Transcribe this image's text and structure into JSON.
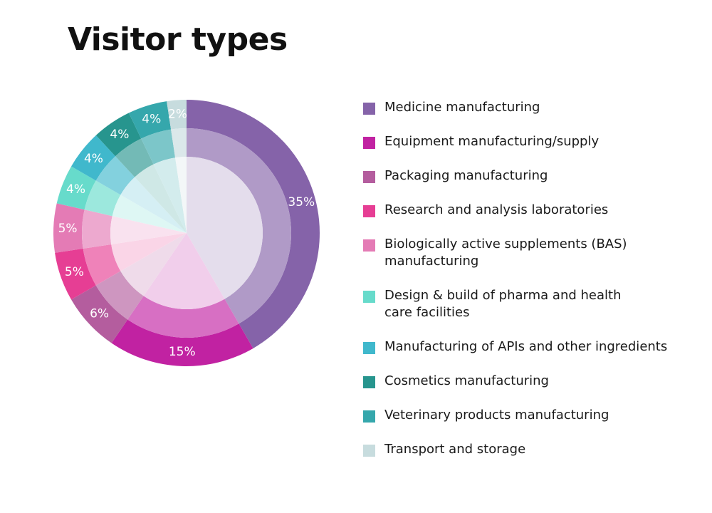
{
  "title": "Visitor types",
  "chart_data": {
    "type": "pie",
    "title": "Visitor types",
    "legend_position": "right",
    "categories": [
      "Medicine manufacturing",
      "Equipment manufacturing/supply",
      "Packaging manufacturing",
      "Research and analysis laboratories",
      "Biologically active supplements (BAS) manufacturing",
      "Design & build of pharma and health care facilities",
      "Manufacturing of APIs and other ingredients",
      "Cosmetics manufacturing",
      "Veterinary products manufacturing",
      "Transport and storage"
    ],
    "values": [
      35,
      15,
      6,
      5,
      5,
      4,
      4,
      4,
      4,
      2
    ],
    "labels": [
      "35%",
      "15%",
      "6%",
      "5%",
      "5%",
      "4%",
      "4%",
      "4%",
      "4%",
      "2%"
    ],
    "colors": [
      "#8563a9",
      "#c122a2",
      "#b45d9e",
      "#e63e94",
      "#e47bb5",
      "#67dbcb",
      "#40b8cc",
      "#27958e",
      "#35a7ac",
      "#c7dcde"
    ]
  },
  "legend": {
    "items": [
      {
        "label": "Medicine manufacturing",
        "color": "#8563a9"
      },
      {
        "label": "Equipment manufacturing/supply",
        "color": "#c122a2"
      },
      {
        "label": "Packaging manufacturing",
        "color": "#b45d9e"
      },
      {
        "label": "Research and analysis laboratories",
        "color": "#e63e94"
      },
      {
        "label": "Biologically active supplements (BAS) manufacturing",
        "color": "#e47bb5"
      },
      {
        "label": "Design & build of pharma and health care facilities",
        "color": "#67dbcb"
      },
      {
        "label": "Manufacturing of APIs and other ingredients",
        "color": "#40b8cc"
      },
      {
        "label": "Cosmetics manufacturing",
        "color": "#27958e"
      },
      {
        "label": "Veterinary products manufacturing",
        "color": "#35a7ac"
      },
      {
        "label": "Transport and storage",
        "color": "#c7dcde"
      }
    ]
  }
}
